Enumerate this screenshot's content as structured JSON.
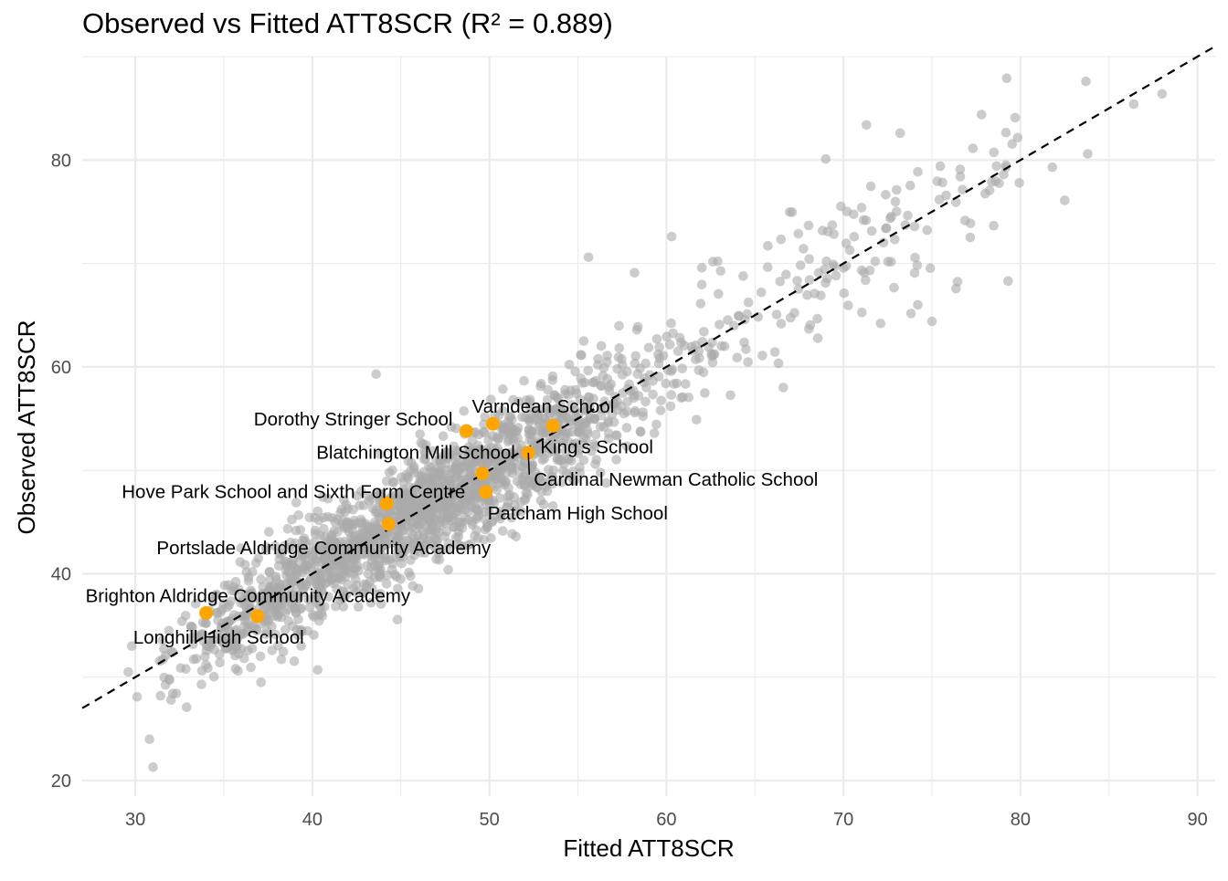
{
  "chart_data": {
    "type": "scatter",
    "title": "Observed vs Fitted ATT8SCR (R² = 0.889)",
    "xlabel": "Fitted ATT8SCR",
    "ylabel": "Observed ATT8SCR",
    "xlim": [
      27,
      91
    ],
    "ylim": [
      18.5,
      90
    ],
    "x_ticks": [
      30,
      40,
      50,
      60,
      70,
      80,
      90
    ],
    "y_ticks": [
      20,
      40,
      60,
      80
    ],
    "grid": true,
    "reference_line": {
      "type": "dashed",
      "slope": 1,
      "intercept": 0
    },
    "colors": {
      "background_points": "#aaaaaa",
      "highlight_points": "#FFA500",
      "grid": "#ebebeb",
      "reference_line": "#000000"
    },
    "highlighted": [
      {
        "name": "Dorothy Stringer School",
        "x": 48.7,
        "y": 53.8
      },
      {
        "name": "Varndean School",
        "x": 50.2,
        "y": 54.5
      },
      {
        "name": "Blatchington Mill School",
        "x": 49.6,
        "y": 49.7
      },
      {
        "name": "King's School",
        "x": 53.6,
        "y": 54.3
      },
      {
        "name": "Cardinal Newman Catholic School",
        "x": 52.2,
        "y": 51.7
      },
      {
        "name": "Hove Park School and Sixth Form Centre",
        "x": 44.2,
        "y": 46.8
      },
      {
        "name": "Patcham High School",
        "x": 49.8,
        "y": 47.9
      },
      {
        "name": "Portslade Aldridge Community Academy",
        "x": 44.3,
        "y": 44.8
      },
      {
        "name": "Brighton Aldridge Community Academy",
        "x": 34.0,
        "y": 36.2
      },
      {
        "name": "Longhill High School",
        "x": 36.9,
        "y": 35.9
      }
    ],
    "extreme_points": [
      {
        "x": 30.8,
        "y": 24.0
      },
      {
        "x": 31.0,
        "y": 21.3
      },
      {
        "x": 29.6,
        "y": 30.5
      },
      {
        "x": 29.8,
        "y": 33.0
      },
      {
        "x": 30.1,
        "y": 28.1
      },
      {
        "x": 32.9,
        "y": 27.1
      },
      {
        "x": 55.6,
        "y": 70.6
      },
      {
        "x": 71.3,
        "y": 83.4
      },
      {
        "x": 77.8,
        "y": 84.4
      },
      {
        "x": 79.7,
        "y": 84.1
      },
      {
        "x": 83.7,
        "y": 87.6
      },
      {
        "x": 86.4,
        "y": 85.4
      },
      {
        "x": 88.0,
        "y": 86.4
      },
      {
        "x": 69.0,
        "y": 80.1
      },
      {
        "x": 82.5,
        "y": 76.1
      },
      {
        "x": 79.3,
        "y": 68.3
      },
      {
        "x": 75.0,
        "y": 64.4
      },
      {
        "x": 72.1,
        "y": 64.2
      },
      {
        "x": 74.2,
        "y": 66.0
      },
      {
        "x": 60.3,
        "y": 72.6
      },
      {
        "x": 62.9,
        "y": 70.2
      },
      {
        "x": 58.2,
        "y": 69.1
      },
      {
        "x": 43.6,
        "y": 59.3
      },
      {
        "x": 37.1,
        "y": 29.5
      },
      {
        "x": 35.8,
        "y": 30.6
      },
      {
        "x": 31.9,
        "y": 34.5
      },
      {
        "x": 66.6,
        "y": 58.0
      },
      {
        "x": 61.7,
        "y": 54.9
      },
      {
        "x": 51.5,
        "y": 43.6
      },
      {
        "x": 40.3,
        "y": 30.7
      },
      {
        "x": 83.8,
        "y": 80.6
      },
      {
        "x": 81.8,
        "y": 79.3
      },
      {
        "x": 73.2,
        "y": 82.6
      },
      {
        "x": 76.6,
        "y": 78.4
      }
    ],
    "bulk_cloud": {
      "n": 1950,
      "x_center": 46.0,
      "x_sd": 8.8,
      "residual_sd": 2.6,
      "x_range": [
        31,
        80
      ]
    }
  }
}
